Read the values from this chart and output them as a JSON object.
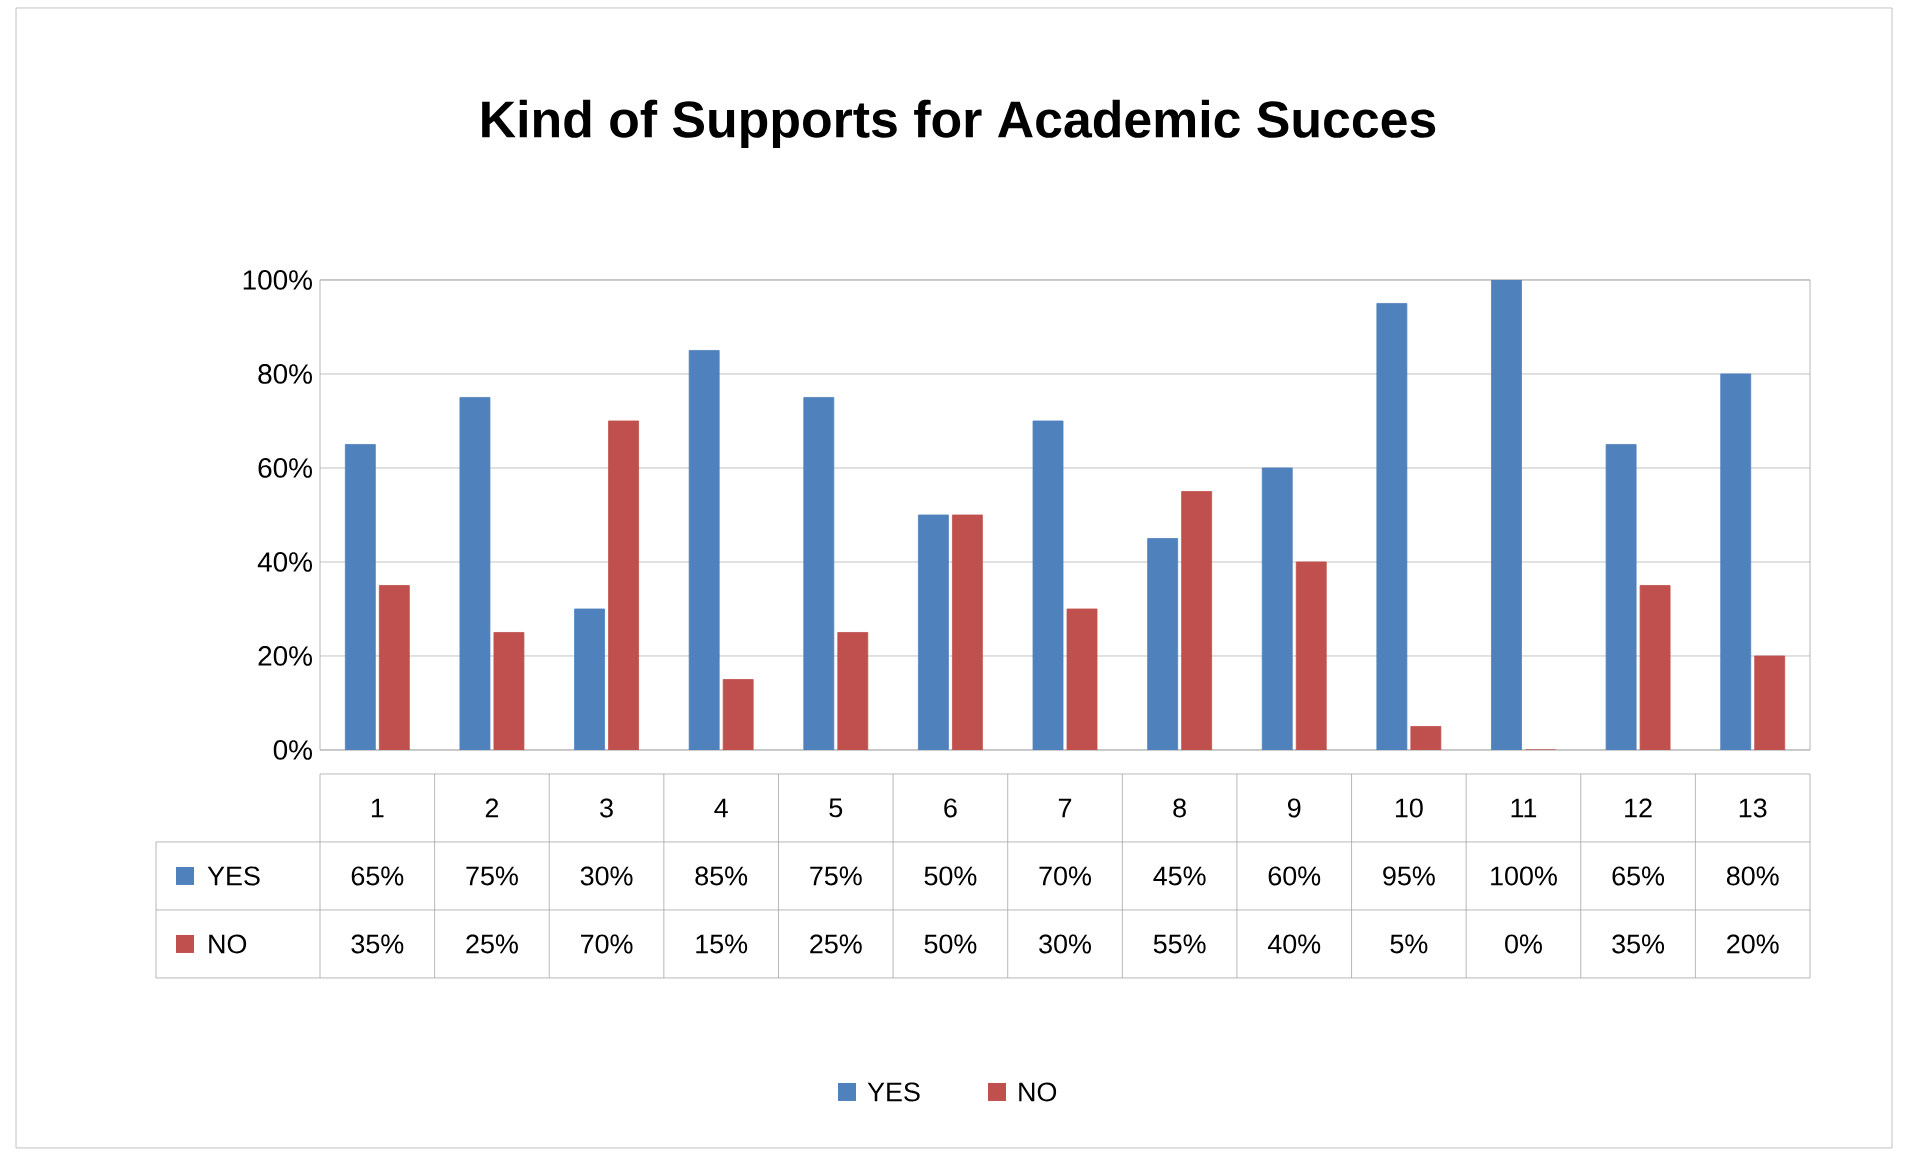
{
  "chart_data": {
    "type": "bar",
    "title": "Kind of Supports for Academic Succes",
    "categories": [
      "1",
      "2",
      "3",
      "4",
      "5",
      "6",
      "7",
      "8",
      "9",
      "10",
      "11",
      "12",
      "13"
    ],
    "series": [
      {
        "name": "YES",
        "color": "#4f81bd",
        "values": [
          65,
          75,
          30,
          85,
          75,
          50,
          70,
          45,
          60,
          95,
          100,
          65,
          80
        ],
        "value_labels": [
          "65%",
          "75%",
          "30%",
          "85%",
          "75%",
          "50%",
          "70%",
          "45%",
          "60%",
          "95%",
          "100%",
          "65%",
          "80%"
        ]
      },
      {
        "name": "NO",
        "color": "#c0504d",
        "values": [
          35,
          25,
          70,
          15,
          25,
          50,
          30,
          55,
          40,
          5,
          0,
          35,
          20
        ],
        "value_labels": [
          "35%",
          "25%",
          "70%",
          "15%",
          "25%",
          "50%",
          "30%",
          "55%",
          "40%",
          "5%",
          "0%",
          "35%",
          "20%"
        ]
      }
    ],
    "ylim": [
      0,
      100
    ],
    "yticks": [
      {
        "value": 0,
        "label": "0%"
      },
      {
        "value": 20,
        "label": "20%"
      },
      {
        "value": 40,
        "label": "40%"
      },
      {
        "value": 60,
        "label": "60%"
      },
      {
        "value": 80,
        "label": "80%"
      },
      {
        "value": 100,
        "label": "100%"
      }
    ],
    "grid": "y",
    "legend": "bottom"
  }
}
